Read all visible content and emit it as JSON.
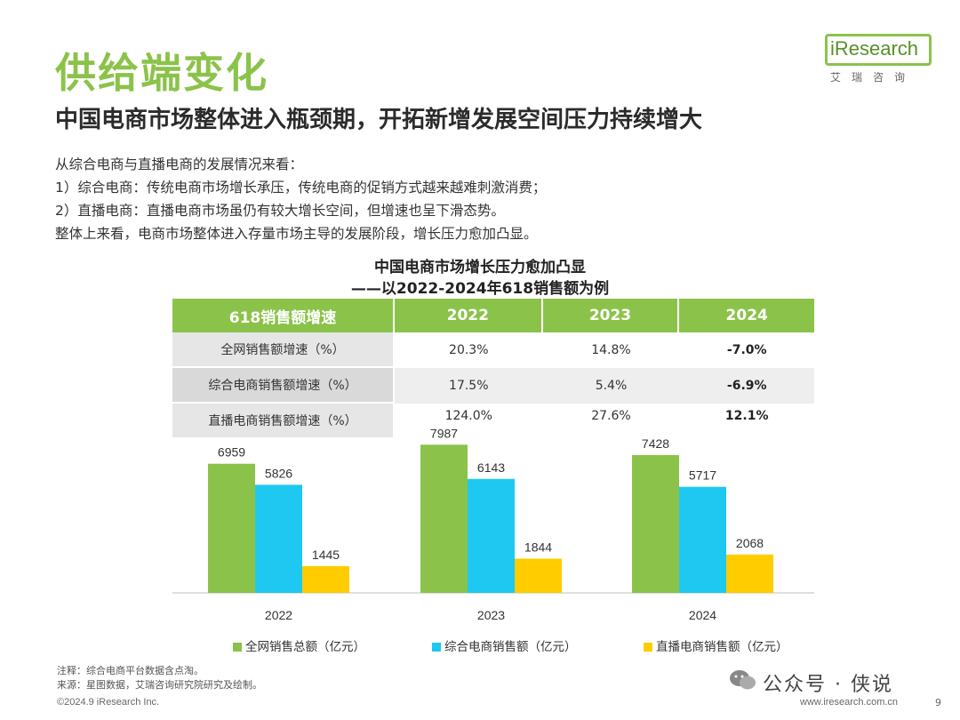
{
  "header": {
    "title": "供给端变化",
    "subtitle": "中国电商市场整体进入瓶颈期，开拓新增发展空间压力持续增大"
  },
  "logo": {
    "brand": "iResearch",
    "cn": "艾瑞咨询"
  },
  "intro": [
    "从综合电商与直播电商的发展情况来看：",
    "1）综合电商：传统电商市场增长承压，传统电商的促销方式越来越难刺激消费；",
    "2）直播电商：直播电商市场虽仍有较大增长空间，但增速也呈下滑态势。",
    "整体上来看，电商市场整体进入存量市场主导的发展阶段，增长压力愈加凸显。"
  ],
  "chart_data": [
    {
      "type": "table",
      "title": "中国电商市场增长压力愈加凸显",
      "subtitle": "——以2022-2024年618销售额为例",
      "header": [
        "618销售额增速",
        "2022",
        "2023",
        "2024"
      ],
      "rows": [
        {
          "label": "全网销售额增速（%）",
          "values": [
            "20.3%",
            "14.8%",
            "-7.0%"
          ]
        },
        {
          "label": "综合电商销售额增速（%）",
          "values": [
            "17.5%",
            "5.4%",
            "-6.9%"
          ]
        },
        {
          "label": "直播电商销售额增速（%）",
          "values": [
            "124.0%",
            "27.6%",
            "12.1%"
          ]
        }
      ]
    },
    {
      "type": "bar",
      "categories": [
        "2022",
        "2023",
        "2024"
      ],
      "series": [
        {
          "name": "全网销售总额（亿元）",
          "values": [
            6959,
            7987,
            7428
          ],
          "color": "#8bc34a"
        },
        {
          "name": "综合电商销售额（亿元）",
          "values": [
            5826,
            6143,
            5717
          ],
          "color": "#1ec8f0"
        },
        {
          "name": "直播电商销售额（亿元）",
          "values": [
            1445,
            1844,
            2068
          ],
          "color": "#ffcc00"
        }
      ],
      "ylim": [
        0,
        8000
      ],
      "grid": false,
      "legend": "bottom"
    }
  ],
  "notes": {
    "note": "注释：综合电商平台数据含点淘。",
    "source": "来源：星图数据，艾瑞咨询研究院研究及绘制。"
  },
  "footer": {
    "copyright": "©2024.9 iResearch Inc.",
    "url": "www.iresearch.com.cn",
    "page": "9"
  },
  "watermark": "公众号 · 侠说"
}
